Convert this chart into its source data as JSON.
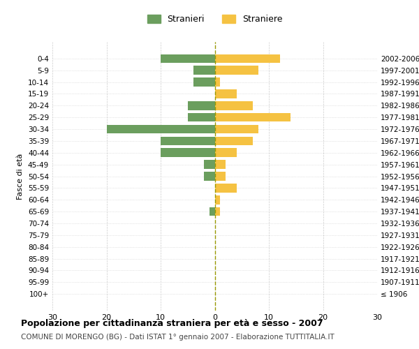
{
  "age_groups": [
    "100+",
    "95-99",
    "90-94",
    "85-89",
    "80-84",
    "75-79",
    "70-74",
    "65-69",
    "60-64",
    "55-59",
    "50-54",
    "45-49",
    "40-44",
    "35-39",
    "30-34",
    "25-29",
    "20-24",
    "15-19",
    "10-14",
    "5-9",
    "0-4"
  ],
  "birth_years": [
    "≤ 1906",
    "1907-1911",
    "1912-1916",
    "1917-1921",
    "1922-1926",
    "1927-1931",
    "1932-1936",
    "1937-1941",
    "1942-1946",
    "1947-1951",
    "1952-1956",
    "1957-1961",
    "1962-1966",
    "1967-1971",
    "1972-1976",
    "1977-1981",
    "1982-1986",
    "1987-1991",
    "1992-1996",
    "1997-2001",
    "2002-2006"
  ],
  "males": [
    0,
    0,
    0,
    0,
    0,
    0,
    0,
    1,
    0,
    0,
    2,
    2,
    10,
    10,
    20,
    5,
    5,
    0,
    4,
    4,
    10
  ],
  "females": [
    0,
    0,
    0,
    0,
    0,
    0,
    0,
    1,
    1,
    4,
    2,
    2,
    4,
    7,
    8,
    14,
    7,
    4,
    1,
    8,
    12
  ],
  "male_color": "#6b9e5e",
  "female_color": "#f5c242",
  "background_color": "#ffffff",
  "grid_color": "#cccccc",
  "title": "Popolazione per cittadinanza straniera per età e sesso - 2007",
  "subtitle": "COMUNE DI MORENGO (BG) - Dati ISTAT 1° gennaio 2007 - Elaborazione TUTTITALIA.IT",
  "ylabel_left": "Fasce di età",
  "legend_males": "Stranieri",
  "legend_females": "Straniere",
  "xlim": 30,
  "xticks": [
    -30,
    -20,
    -10,
    0,
    10,
    20,
    30
  ],
  "xticklabels": [
    "30",
    "20",
    "10",
    "0",
    "10",
    "20",
    "30"
  ]
}
